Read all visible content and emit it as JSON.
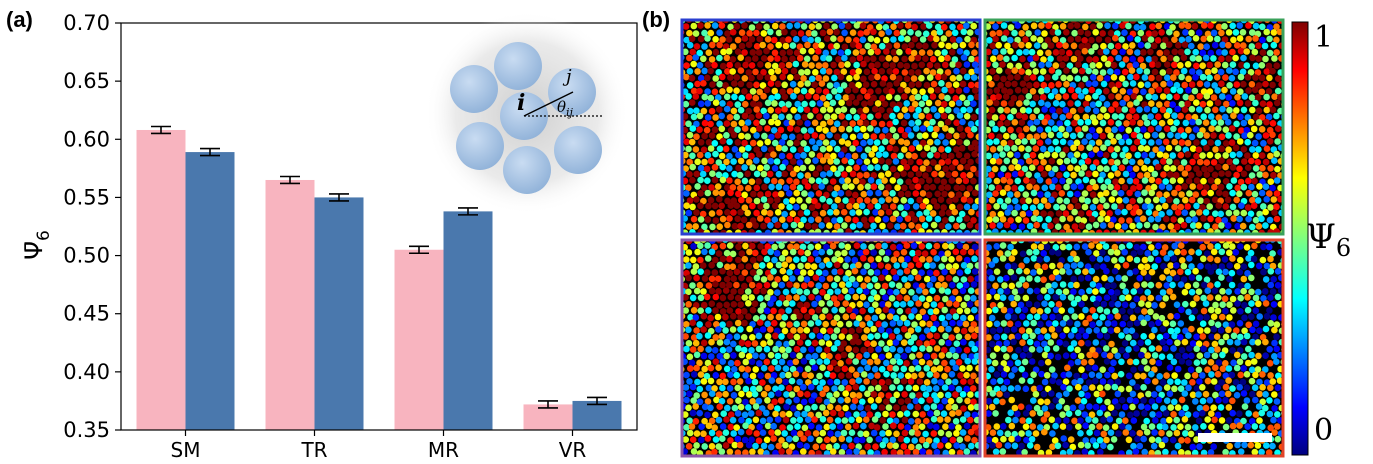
{
  "panels": {
    "a_label": "(a)",
    "b_label": "(b)"
  },
  "chart_data": {
    "type": "bar",
    "ylabel": "Ψ̄",
    "ylabel_sub": "6",
    "categories": [
      "SM",
      "TR",
      "MR",
      "VR"
    ],
    "ylim": [
      0.35,
      0.7
    ],
    "yticks": [
      "0.35",
      "0.40",
      "0.45",
      "0.50",
      "0.55",
      "0.60",
      "0.65",
      "0.70"
    ],
    "series": [
      {
        "values": [
          0.608,
          0.565,
          0.505,
          0.372
        ],
        "errors": [
          0.003,
          0.003,
          0.003,
          0.003
        ],
        "color": "#f8b4bf"
      },
      {
        "values": [
          0.589,
          0.55,
          0.538,
          0.375
        ],
        "errors": [
          0.003,
          0.003,
          0.003,
          0.003
        ],
        "color": "#4a78ad"
      }
    ],
    "grid": false,
    "legend": "none"
  },
  "inset": {
    "label_i": "i",
    "label_j": "j",
    "label_theta": "θ",
    "label_theta_sub": "ij"
  },
  "colorbar": {
    "label": "Ψ",
    "label_sub": "6",
    "max_label": "1",
    "min_label": "0"
  },
  "snapshots": [
    {
      "border": "#2a3fd0",
      "mean": 0.61
    },
    {
      "border": "#3aa15a",
      "mean": 0.55
    },
    {
      "border": "#8a55a8",
      "mean": 0.51
    },
    {
      "border": "#e0442a",
      "mean": 0.37
    }
  ],
  "colors": {
    "bar_pink": "#f8b4bf",
    "bar_blue": "#4a78ad",
    "scale_bar": "#ffffff"
  }
}
